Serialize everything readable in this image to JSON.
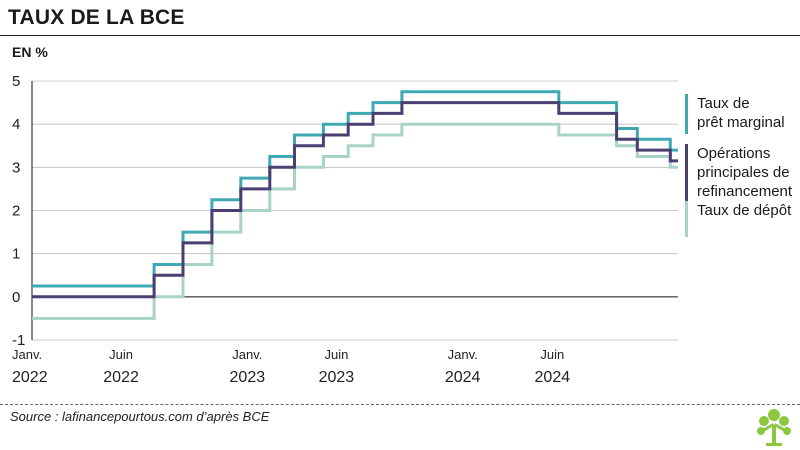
{
  "header": {
    "title": "TAUX DE LA BCE",
    "unit": "EN %"
  },
  "source": "Source : lafinancepourtous.com d’après BCE",
  "chart_data": {
    "type": "line",
    "title": "TAUX DE LA BCE",
    "ylabel": "EN %",
    "xlabel": "",
    "ylim": [
      -1,
      5
    ],
    "yticks": [
      "5",
      "4",
      "3",
      "2",
      "1",
      "0",
      "-1"
    ],
    "xlim": [
      "2022-01-01",
      "2024-12-31"
    ],
    "xtick_labels": [
      {
        "date": "2022-01-01",
        "line1": "Janv.",
        "line2": "2022"
      },
      {
        "date": "2022-06-01",
        "line1": "Juin",
        "line2": "2022"
      },
      {
        "date": "2023-01-01",
        "line1": "Janv.",
        "line2": "2023"
      },
      {
        "date": "2023-06-01",
        "line1": "Juin",
        "line2": "2023"
      },
      {
        "date": "2024-01-01",
        "line1": "Janv.",
        "line2": "2024"
      },
      {
        "date": "2024-06-01",
        "line1": "Juin",
        "line2": "2024"
      }
    ],
    "grid": true,
    "legend_position": "right",
    "series": [
      {
        "name": "Taux de prêt marginal",
        "color": "#3ea9b3",
        "points": [
          [
            "2022-01-01",
            0.25
          ],
          [
            "2022-07-27",
            0.75
          ],
          [
            "2022-09-14",
            1.5
          ],
          [
            "2022-11-02",
            2.25
          ],
          [
            "2022-12-21",
            2.75
          ],
          [
            "2023-02-08",
            3.25
          ],
          [
            "2023-03-22",
            3.75
          ],
          [
            "2023-05-10",
            4.0
          ],
          [
            "2023-06-21",
            4.25
          ],
          [
            "2023-08-02",
            4.5
          ],
          [
            "2023-09-20",
            4.75
          ],
          [
            "2024-06-12",
            4.5
          ],
          [
            "2024-09-18",
            3.9
          ],
          [
            "2024-10-23",
            3.65
          ],
          [
            "2024-12-18",
            3.4
          ],
          [
            "2024-12-31",
            3.4
          ]
        ]
      },
      {
        "name": "Opérations principales de refinancement",
        "color": "#4b3f72",
        "points": [
          [
            "2022-01-01",
            0.0
          ],
          [
            "2022-07-27",
            0.5
          ],
          [
            "2022-09-14",
            1.25
          ],
          [
            "2022-11-02",
            2.0
          ],
          [
            "2022-12-21",
            2.5
          ],
          [
            "2023-02-08",
            3.0
          ],
          [
            "2023-03-22",
            3.5
          ],
          [
            "2023-05-10",
            3.75
          ],
          [
            "2023-06-21",
            4.0
          ],
          [
            "2023-08-02",
            4.25
          ],
          [
            "2023-09-20",
            4.5
          ],
          [
            "2024-06-12",
            4.25
          ],
          [
            "2024-09-18",
            3.65
          ],
          [
            "2024-10-23",
            3.4
          ],
          [
            "2024-12-18",
            3.15
          ],
          [
            "2024-12-31",
            3.15
          ]
        ]
      },
      {
        "name": "Taux de dépôt",
        "color": "#a8d3c9",
        "points": [
          [
            "2022-01-01",
            -0.5
          ],
          [
            "2022-07-27",
            0.0
          ],
          [
            "2022-09-14",
            0.75
          ],
          [
            "2022-11-02",
            1.5
          ],
          [
            "2022-12-21",
            2.0
          ],
          [
            "2023-02-08",
            2.5
          ],
          [
            "2023-03-22",
            3.0
          ],
          [
            "2023-05-10",
            3.25
          ],
          [
            "2023-06-21",
            3.5
          ],
          [
            "2023-08-02",
            3.75
          ],
          [
            "2023-09-20",
            4.0
          ],
          [
            "2024-06-12",
            3.75
          ],
          [
            "2024-09-18",
            3.5
          ],
          [
            "2024-10-23",
            3.25
          ],
          [
            "2024-12-18",
            3.0
          ],
          [
            "2024-12-31",
            3.0
          ]
        ]
      }
    ]
  },
  "legend": [
    {
      "label": "Taux de\nprêt marginal",
      "color": "#3ea9b3"
    },
    {
      "label": "Opérations\nprincipales de\nrefinancement",
      "color": "#4b3f72"
    },
    {
      "label": "Taux de dépôt",
      "color": "#a8d3c9"
    }
  ],
  "logo": {
    "icon": "tree-icon",
    "color": "#8dc63f"
  }
}
